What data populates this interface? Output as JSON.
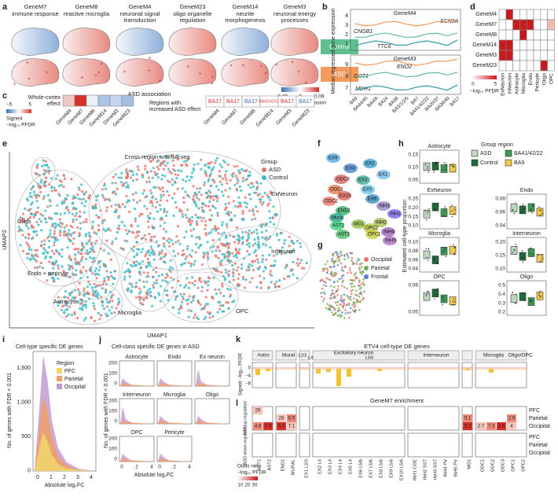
{
  "panel_labels": [
    "a",
    "b",
    "c",
    "d",
    "e",
    "f",
    "g",
    "h",
    "i",
    "j",
    "k",
    "l"
  ],
  "a": {
    "modules": [
      {
        "gene": "GeneM7",
        "lines": [
          "immune response"
        ]
      },
      {
        "gene": "GeneM8",
        "lines": [
          "reactive microglia"
        ]
      },
      {
        "gene": "GeneM4",
        "lines": [
          "neuronal signal",
          "transduction"
        ]
      },
      {
        "gene": "GeneM23",
        "lines": [
          "oligo organelle",
          "regulation"
        ]
      },
      {
        "gene": "GeneM14",
        "lines": [
          "neurite",
          "morphogenesis"
        ]
      },
      {
        "gene": "GeneM3",
        "lines": [
          "neuronal energy",
          "processes"
        ]
      }
    ],
    "groups": [
      "Control",
      "ASD"
    ],
    "scale_ticks": [
      "−0.09",
      "0",
      "0.09"
    ],
    "scale_title": "Median ME expression"
  },
  "b": {
    "y_title": "Median regressed gene expression",
    "top": {
      "module": "GeneM4",
      "genes": [
        "SCN9A",
        "CNGB1",
        "TTC6"
      ],
      "yticks": [
        "4",
        "3",
        "2",
        "1"
      ]
    },
    "bottom": {
      "module": "GeneM3",
      "genes": [
        "ENO2",
        "GOT1",
        "MDH1"
      ],
      "yticks": [
        "9",
        "8",
        "7"
      ]
    },
    "regions": [
      "BA9",
      "BA44/45",
      "BA4/6",
      "BA24",
      "BA38",
      "BA3/1/2/5",
      "BA7",
      "BA41/42/22",
      "BA20/37",
      "BA39/40",
      "BA17"
    ]
  },
  "c": {
    "title": "ASD association",
    "row_label": [
      "Whole-cortex",
      "effect"
    ],
    "scale_ticks": [
      "−5",
      "5"
    ],
    "scale_title": [
      "Signed",
      "−log₁₀ PFDR"
    ],
    "modules": [
      "GeneM4",
      "GeneM7",
      "GeneM8",
      "GeneM14",
      "GeneM3",
      "GeneM23"
    ],
    "regions_label": [
      "Regions with",
      "increased ASD effect"
    ],
    "regions": [
      "BA17",
      "BA17",
      "BA17",
      "BA41/42/22",
      "BA17",
      "BA17"
    ]
  },
  "d": {
    "rows": [
      "GeneM4",
      "GeneM7",
      "GeneM8",
      "GeneM14",
      "GeneM3",
      "GeneM23"
    ],
    "columns": [
      "ExNeuron",
      "InNeuron",
      "Astrocyte",
      "Microglia",
      "Endo",
      "Pericyte",
      "Oligo",
      "OPC"
    ],
    "scale_ticks": [
      "0",
      "5"
    ],
    "scale_title": "−log₁₀ PFDR"
  },
  "e": {
    "title": "Cross region snRNA-seq",
    "legend_title": "Group",
    "groups": [
      "ASD",
      "Control"
    ],
    "clusters": [
      "ExNeuron",
      "Oligo",
      "Endo + pericyte",
      "Astrocyte",
      "Microglia",
      "InNeuron",
      "OPC"
    ],
    "x_title": "UMAP1",
    "y_title": "UMAP2"
  },
  "f": {
    "clusters": [
      "EX9",
      "EX4",
      "EX2",
      "EX1",
      "ODC3",
      "EX3",
      "ODC1",
      "EX10",
      "EX5",
      "EX6",
      "ODC2",
      "INH3",
      "INH1",
      "END1",
      "Mural",
      "MG1",
      "INH2",
      "AST2",
      "OPC2",
      "INH4",
      "AST1",
      "OPC1",
      "INH5"
    ]
  },
  "g": {
    "regions": [
      "Occipital",
      "Parietal",
      "Frontal"
    ]
  },
  "h": {
    "legend_title": "Group region",
    "groups": [
      "ASD",
      "Control",
      "BA41/42/22",
      "BA9"
    ],
    "y_title": "Estimated cell-type proportion",
    "panels": [
      {
        "title": "Astrocyte",
        "yticks": [
          "0.15",
          "0.10",
          "0.05"
        ]
      },
      {
        "title": "ExNeuron",
        "yticks": [
          "0.25",
          "0.20",
          "0.15",
          "0.10"
        ]
      },
      {
        "title": "Endo",
        "yticks": [
          "0.08",
          "0.06",
          "0.04"
        ]
      },
      {
        "title": "Microglia",
        "yticks": [
          "0.10",
          "0.08",
          "0.06",
          "0.04"
        ]
      },
      {
        "title": "Interneuron",
        "yticks": [
          "0.20",
          "0.15",
          "0.10"
        ]
      },
      {
        "title": "OPC",
        "yticks": [
          "0.06",
          "0.05"
        ]
      },
      {
        "title": "Oligo",
        "yticks": [
          "0.5",
          "0.4",
          "0.3",
          "0.2"
        ]
      }
    ]
  },
  "i": {
    "title": "Cell-type specific DE genes",
    "legend_title": "Region",
    "regions": [
      "PFC",
      "Parietal",
      "Occipital"
    ],
    "yticks": [
      "1,500",
      "1,000",
      "500",
      "0"
    ],
    "xticks": [
      "0",
      "1",
      "2",
      "3",
      "4"
    ],
    "y_title": "No. of genes with FDR < 0.001",
    "x_title": "Absolute log₂FC"
  },
  "j": {
    "title": "Cell-class specific DE genes in ASD",
    "panels": [
      "Astrocyte",
      "Endo",
      "Ex neuron",
      "Interneuron",
      "Microglia",
      "Oligo",
      "OPC",
      "Pericyte"
    ],
    "yticks": [
      "200",
      "100",
      "0"
    ],
    "xticks": [
      "0",
      "2",
      "4"
    ],
    "y_title": "No. of genes with FDR < 0.001",
    "x_title": "Absolute log₂FC"
  },
  "k": {
    "title": "ETV4 cell-type DE genes",
    "groups": [
      "Astro",
      "Mural",
      "L2/3",
      "Excitatory neuron",
      "L4",
      "L5/6",
      "Interneuron",
      "Microglia",
      "Oligo/OPC"
    ],
    "y_title": "Signed −log₁₀ PFDR",
    "yticks": [
      "0",
      "−4",
      "−8"
    ]
  },
  "l": {
    "title": "GeneM7 enrichment",
    "row_groups": [
      "ASD up-regulated",
      "ASD down-regulated"
    ],
    "regions": [
      "PFC",
      "Parietal",
      "Occipital"
    ],
    "cell_labels": [
      "26",
      "4.8",
      "7.9",
      "28",
      "6.5",
      "5.2",
      "7.1",
      "5.1",
      "5.2",
      "2.7",
      "7.3",
      "2.6",
      "4",
      "2.9"
    ],
    "legend_title": "Odds ratio",
    "scale_title": "−log₁₀ PFDR",
    "scale_ticks": [
      "10",
      "20",
      "30"
    ],
    "columns": [
      "AST1",
      "AST2",
      "END1",
      "MURAL",
      "EX1 L2/3",
      "EX2 L4",
      "EX3 L4",
      "EX4 L4",
      "EX5 L4",
      "EX6 L5/6",
      "EX7 L5/6",
      "EX8 L5/6",
      "EX9 L5/6",
      "EX10 L5/6",
      "INH1 CGE",
      "INH2 SST",
      "INH3 SST",
      "INH4 PV",
      "INH5 PV",
      "MG1",
      "ODC1",
      "ODC2",
      "ODC3",
      "OPC1",
      "OPC2"
    ]
  }
}
